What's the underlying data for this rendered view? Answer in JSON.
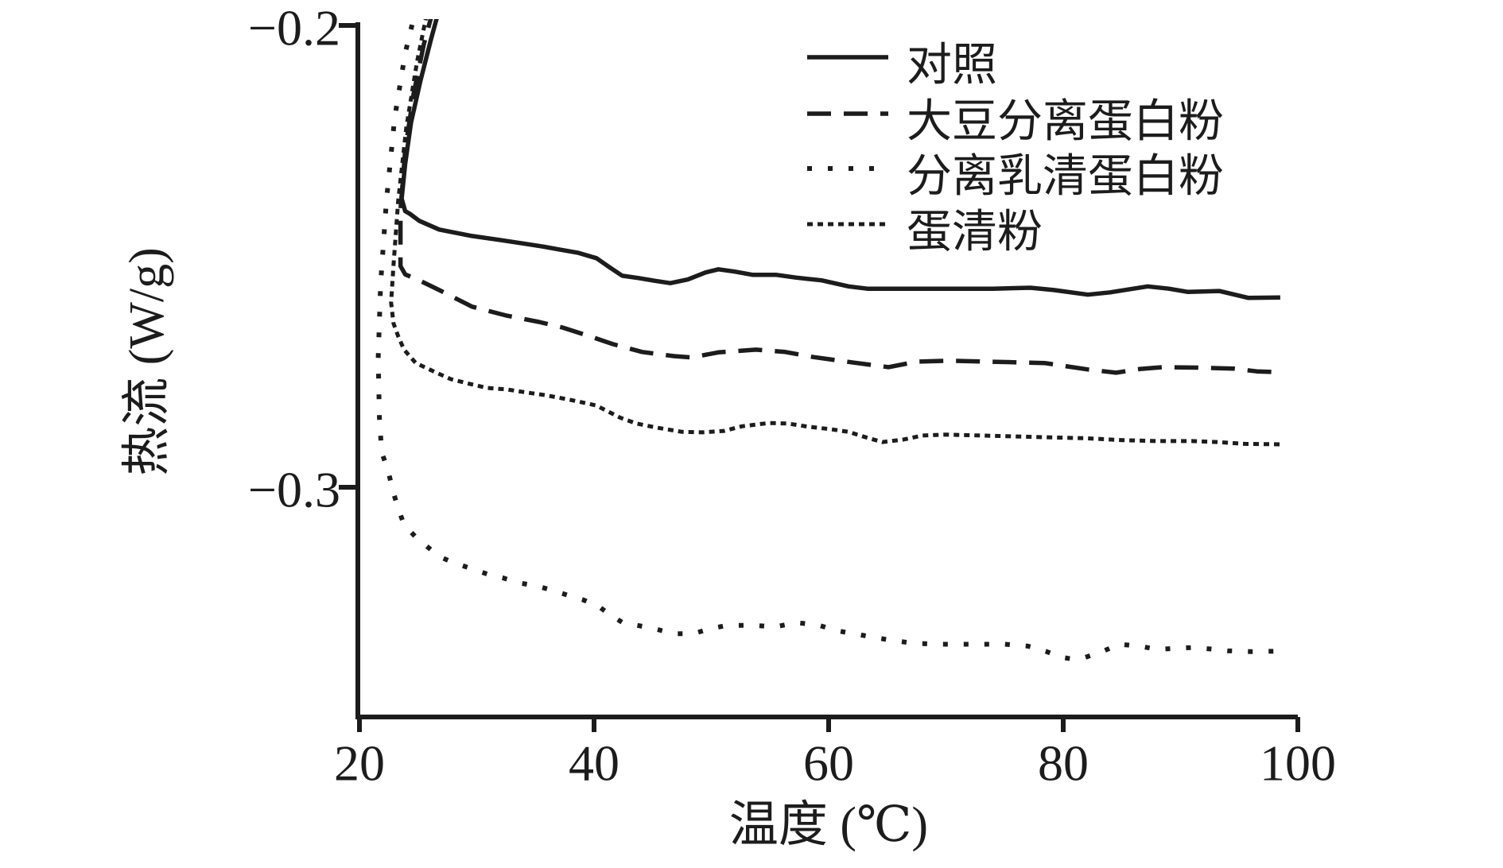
{
  "figure": {
    "background": "#ffffff",
    "ink_color": "#1c1c1c"
  },
  "chart_data": {
    "type": "line",
    "title": "",
    "xlabel": "温度 (℃)",
    "ylabel": "热流 (W/g)",
    "xlim": [
      20,
      100
    ],
    "ylim": [
      -0.35,
      -0.195
    ],
    "xticks": [
      20,
      40,
      60,
      80,
      100
    ],
    "xtick_labels": [
      "20",
      "40",
      "60",
      "80",
      "100"
    ],
    "yticks": [
      -0.2,
      -0.3
    ],
    "ytick_labels": [
      "−0.2",
      "−0.3"
    ],
    "grid": false,
    "legend_position": "upper-right-inside",
    "series": [
      {
        "name": "对照",
        "line_style": "solid",
        "color": "#1c1c1c",
        "points": [
          [
            26.9,
            -0.1955
          ],
          [
            26.1,
            -0.203
          ],
          [
            25.2,
            -0.212
          ],
          [
            24.4,
            -0.221
          ],
          [
            23.9,
            -0.23
          ],
          [
            23.6,
            -0.2375
          ],
          [
            23.9,
            -0.2402
          ],
          [
            24.3,
            -0.2408
          ],
          [
            25.1,
            -0.2423
          ],
          [
            26.8,
            -0.2442
          ],
          [
            29.6,
            -0.2456
          ],
          [
            32.1,
            -0.2465
          ],
          [
            33.9,
            -0.2472
          ],
          [
            35.7,
            -0.2479
          ],
          [
            37.0,
            -0.2485
          ],
          [
            38.6,
            -0.2492
          ],
          [
            40.2,
            -0.2504
          ],
          [
            41.4,
            -0.2525
          ],
          [
            42.4,
            -0.2542
          ],
          [
            43.8,
            -0.2547
          ],
          [
            45.2,
            -0.2553
          ],
          [
            46.5,
            -0.2558
          ],
          [
            48.0,
            -0.255
          ],
          [
            49.5,
            -0.2535
          ],
          [
            50.6,
            -0.2528
          ],
          [
            52.0,
            -0.2533
          ],
          [
            53.5,
            -0.254
          ],
          [
            55.5,
            -0.254
          ],
          [
            57.2,
            -0.2546
          ],
          [
            59.4,
            -0.2552
          ],
          [
            61.7,
            -0.2565
          ],
          [
            63.3,
            -0.257
          ],
          [
            66.2,
            -0.257
          ],
          [
            70.7,
            -0.257
          ],
          [
            74.0,
            -0.257
          ],
          [
            77.2,
            -0.2568
          ],
          [
            79.2,
            -0.2573
          ],
          [
            82.1,
            -0.2583
          ],
          [
            84.0,
            -0.2578
          ],
          [
            87.2,
            -0.2565
          ],
          [
            89.0,
            -0.257
          ],
          [
            90.6,
            -0.2577
          ],
          [
            93.3,
            -0.2575
          ],
          [
            95.8,
            -0.259
          ],
          [
            98.5,
            -0.2589
          ]
        ]
      },
      {
        "name": "大豆分离蛋白粉",
        "line_style": "dashed",
        "color": "#1c1c1c",
        "points": [
          [
            26.4,
            -0.1955
          ],
          [
            25.5,
            -0.204
          ],
          [
            24.6,
            -0.215
          ],
          [
            23.9,
            -0.227
          ],
          [
            23.5,
            -0.24
          ],
          [
            23.5,
            -0.2521
          ],
          [
            23.9,
            -0.2539
          ],
          [
            25.1,
            -0.2552
          ],
          [
            26.8,
            -0.2573
          ],
          [
            29.6,
            -0.2609
          ],
          [
            32.5,
            -0.2628
          ],
          [
            35.3,
            -0.2642
          ],
          [
            37.3,
            -0.2654
          ],
          [
            39.5,
            -0.2672
          ],
          [
            41.6,
            -0.269
          ],
          [
            44.1,
            -0.2707
          ],
          [
            46.8,
            -0.2716
          ],
          [
            48.3,
            -0.2719
          ],
          [
            50.6,
            -0.2708
          ],
          [
            53.8,
            -0.2702
          ],
          [
            56.3,
            -0.2707
          ],
          [
            58.7,
            -0.2718
          ],
          [
            62.4,
            -0.2731
          ],
          [
            65.1,
            -0.274
          ],
          [
            67.5,
            -0.2728
          ],
          [
            70.2,
            -0.2726
          ],
          [
            73.6,
            -0.2728
          ],
          [
            78.4,
            -0.2731
          ],
          [
            82.1,
            -0.2745
          ],
          [
            84.5,
            -0.2752
          ],
          [
            86.5,
            -0.2744
          ],
          [
            88.5,
            -0.274
          ],
          [
            91.5,
            -0.2741
          ],
          [
            94.5,
            -0.2743
          ],
          [
            96.5,
            -0.2749
          ],
          [
            98.5,
            -0.2751
          ]
        ]
      },
      {
        "name": "分离乳清蛋白粉",
        "line_style": "dotted",
        "color": "#1c1c1c",
        "points": [
          [
            24.9,
            -0.1955
          ],
          [
            23.9,
            -0.206
          ],
          [
            23.0,
            -0.22
          ],
          [
            22.3,
            -0.238
          ],
          [
            21.8,
            -0.256
          ],
          [
            21.6,
            -0.272
          ],
          [
            21.7,
            -0.285
          ],
          [
            21.9,
            -0.2925
          ],
          [
            22.4,
            -0.296
          ],
          [
            22.9,
            -0.3012
          ],
          [
            23.3,
            -0.3046
          ],
          [
            23.8,
            -0.3081
          ],
          [
            24.8,
            -0.3108
          ],
          [
            25.8,
            -0.3129
          ],
          [
            26.8,
            -0.315
          ],
          [
            28.0,
            -0.3163
          ],
          [
            29.4,
            -0.3175
          ],
          [
            30.9,
            -0.3188
          ],
          [
            32.2,
            -0.3196
          ],
          [
            33.6,
            -0.3207
          ],
          [
            35.0,
            -0.3213
          ],
          [
            36.3,
            -0.3222
          ],
          [
            37.8,
            -0.3234
          ],
          [
            39.1,
            -0.3244
          ],
          [
            40.4,
            -0.3258
          ],
          [
            41.4,
            -0.3277
          ],
          [
            42.5,
            -0.3294
          ],
          [
            44.1,
            -0.3301
          ],
          [
            45.4,
            -0.3308
          ],
          [
            46.8,
            -0.3317
          ],
          [
            48.5,
            -0.3317
          ],
          [
            49.9,
            -0.3306
          ],
          [
            51.4,
            -0.3299
          ],
          [
            53.5,
            -0.3299
          ],
          [
            55.5,
            -0.3302
          ],
          [
            57.2,
            -0.3293
          ],
          [
            59.0,
            -0.3298
          ],
          [
            61.0,
            -0.3312
          ],
          [
            63.0,
            -0.3321
          ],
          [
            65.0,
            -0.333
          ],
          [
            67.0,
            -0.3337
          ],
          [
            69.0,
            -0.334
          ],
          [
            71.0,
            -0.334
          ],
          [
            73.0,
            -0.334
          ],
          [
            75.0,
            -0.334
          ],
          [
            77.0,
            -0.3344
          ],
          [
            78.5,
            -0.3355
          ],
          [
            79.8,
            -0.3368
          ],
          [
            80.8,
            -0.3372
          ],
          [
            81.8,
            -0.3369
          ],
          [
            83.2,
            -0.3357
          ],
          [
            84.8,
            -0.334
          ],
          [
            86.5,
            -0.3344
          ],
          [
            88.0,
            -0.3351
          ],
          [
            89.5,
            -0.3349
          ],
          [
            91.0,
            -0.3347
          ],
          [
            92.5,
            -0.335
          ],
          [
            94.0,
            -0.3354
          ],
          [
            96.0,
            -0.3356
          ],
          [
            98.0,
            -0.3355
          ],
          [
            98.8,
            -0.3356
          ]
        ]
      },
      {
        "name": "蛋清粉",
        "line_style": "dense-dotted",
        "color": "#1c1c1c",
        "points": [
          [
            25.9,
            -0.1955
          ],
          [
            24.9,
            -0.208
          ],
          [
            24.0,
            -0.222
          ],
          [
            23.3,
            -0.238
          ],
          [
            22.9,
            -0.252
          ],
          [
            22.7,
            -0.26
          ],
          [
            22.9,
            -0.2645
          ],
          [
            23.3,
            -0.2673
          ],
          [
            23.8,
            -0.2702
          ],
          [
            24.8,
            -0.2731
          ],
          [
            26.4,
            -0.275
          ],
          [
            27.8,
            -0.2766
          ],
          [
            29.4,
            -0.2776
          ],
          [
            30.9,
            -0.2785
          ],
          [
            32.5,
            -0.2788
          ],
          [
            34.3,
            -0.2795
          ],
          [
            35.7,
            -0.28
          ],
          [
            37.0,
            -0.2806
          ],
          [
            38.6,
            -0.2814
          ],
          [
            40.2,
            -0.2823
          ],
          [
            42.2,
            -0.2849
          ],
          [
            43.6,
            -0.2862
          ],
          [
            45.4,
            -0.2871
          ],
          [
            47.5,
            -0.288
          ],
          [
            49.2,
            -0.2881
          ],
          [
            51.1,
            -0.2878
          ],
          [
            52.6,
            -0.2868
          ],
          [
            54.9,
            -0.2861
          ],
          [
            56.5,
            -0.2862
          ],
          [
            58.3,
            -0.2869
          ],
          [
            60.1,
            -0.2874
          ],
          [
            61.7,
            -0.288
          ],
          [
            63.3,
            -0.2893
          ],
          [
            64.6,
            -0.2902
          ],
          [
            66.3,
            -0.2897
          ],
          [
            68.0,
            -0.2888
          ],
          [
            70.0,
            -0.2886
          ],
          [
            73.0,
            -0.2888
          ],
          [
            76.0,
            -0.289
          ],
          [
            79.0,
            -0.2892
          ],
          [
            82.0,
            -0.2894
          ],
          [
            85.0,
            -0.2898
          ],
          [
            88.0,
            -0.29
          ],
          [
            91.0,
            -0.29
          ],
          [
            93.1,
            -0.2902
          ],
          [
            95.5,
            -0.2906
          ],
          [
            98.5,
            -0.2907
          ]
        ]
      }
    ]
  }
}
